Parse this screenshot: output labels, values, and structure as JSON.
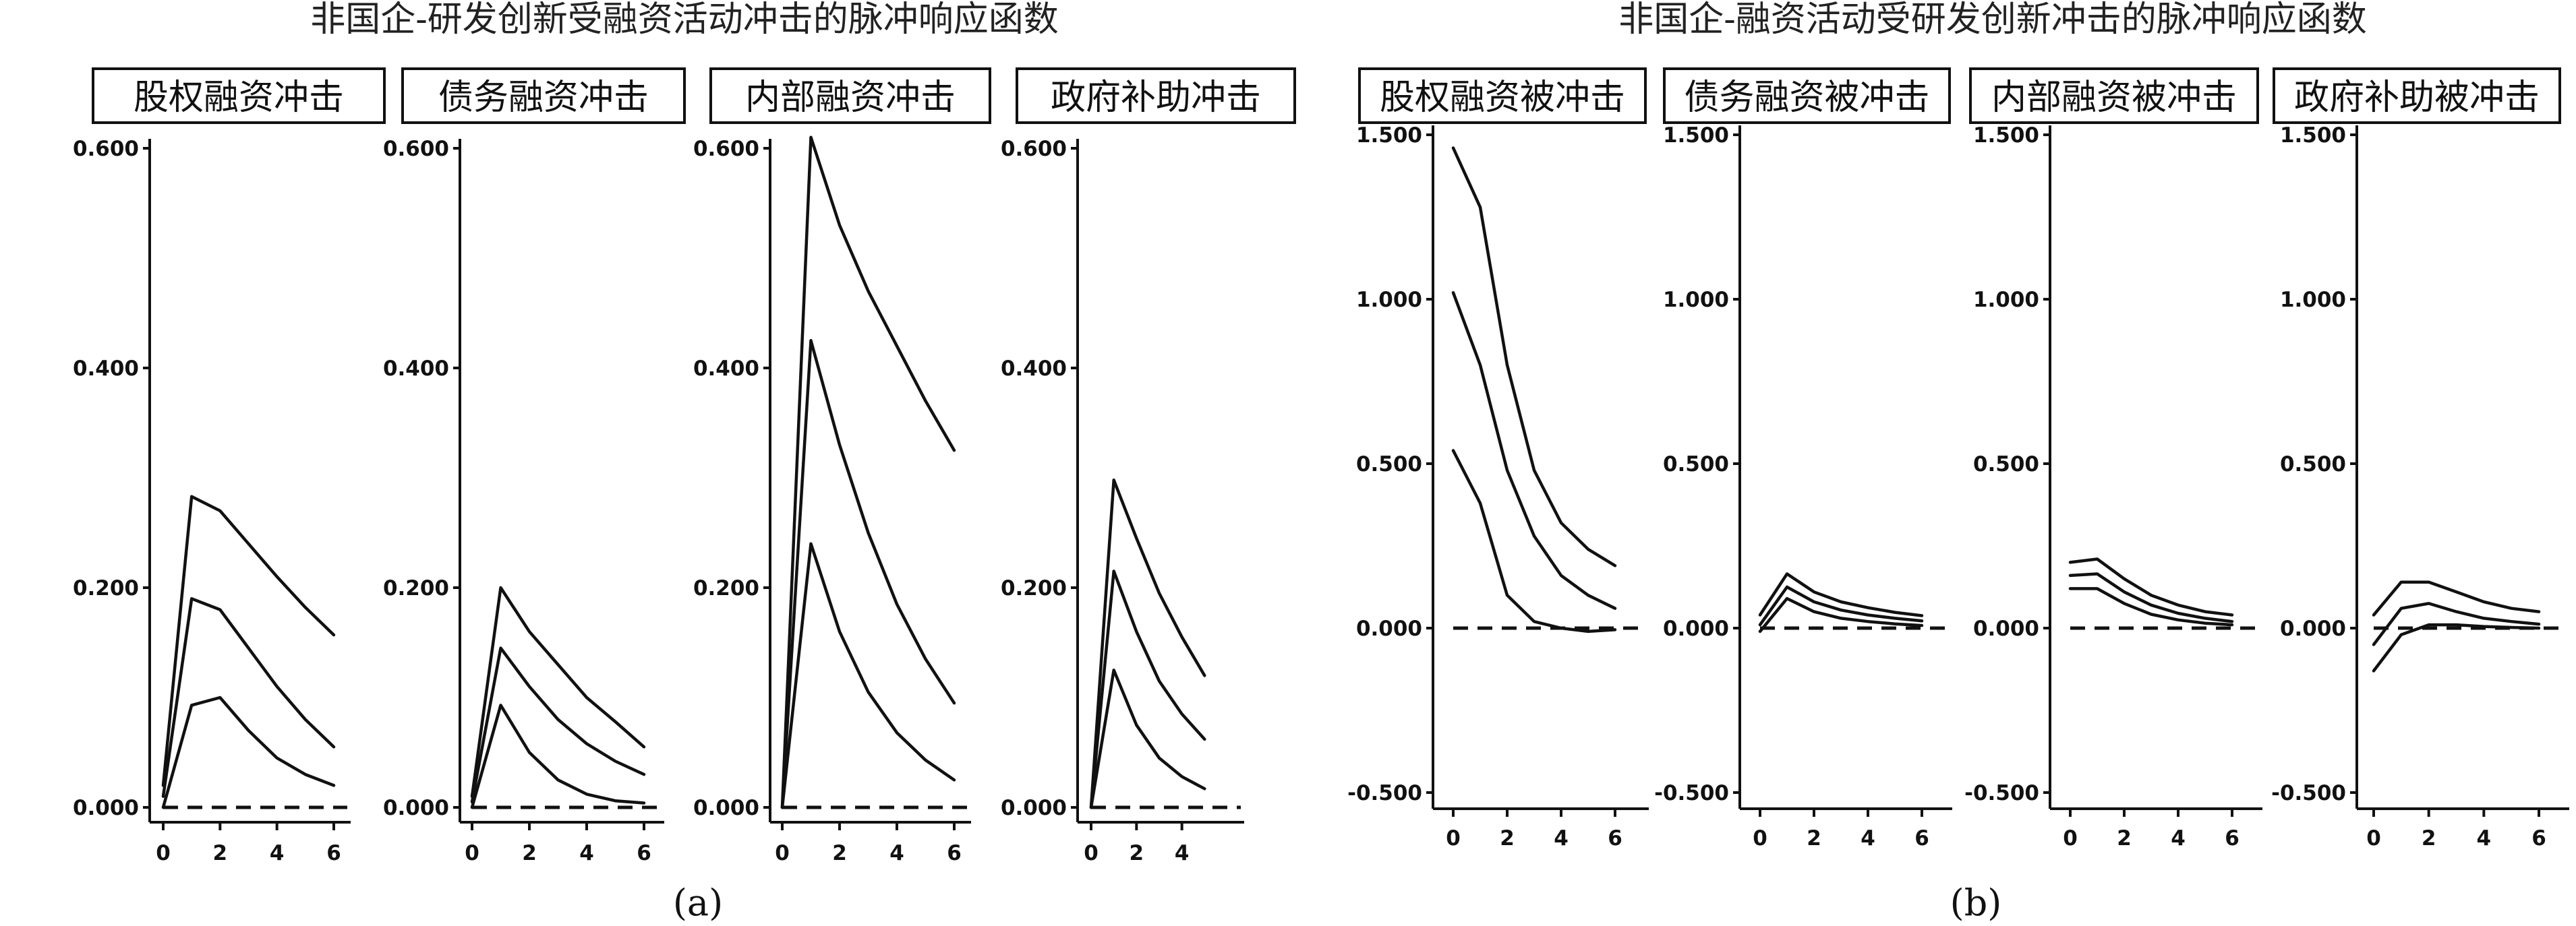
{
  "page": {
    "left_title": "非国企-研发创新受融资活动冲击的脉冲响应函数",
    "right_title": "非国企-融资活动受研发创新冲击的脉冲响应函数",
    "label_a": "(a)",
    "label_b": "(b)"
  },
  "chart_data": [
    {
      "type": "line",
      "group": "a",
      "title": "股权融资冲击",
      "xlim": [
        0,
        6
      ],
      "ylim": [
        0,
        0.6
      ],
      "xticks": [
        "0",
        "2",
        "4",
        "6"
      ],
      "yticks": [
        "0.000",
        "0.200",
        "0.400",
        "0.600"
      ],
      "zero_line": true,
      "series": [
        {
          "x": [
            0,
            1,
            2,
            3,
            4,
            5,
            6
          ],
          "values": [
            0.02,
            0.283,
            0.27,
            0.24,
            0.21,
            0.182,
            0.157
          ]
        },
        {
          "x": [
            0,
            1,
            2,
            3,
            4,
            5,
            6
          ],
          "values": [
            0.01,
            0.19,
            0.18,
            0.145,
            0.11,
            0.08,
            0.055
          ]
        },
        {
          "x": [
            0,
            1,
            2,
            3,
            4,
            5,
            6
          ],
          "values": [
            0.0,
            0.093,
            0.1,
            0.07,
            0.045,
            0.03,
            0.02
          ]
        }
      ]
    },
    {
      "type": "line",
      "group": "a",
      "title": "债务融资冲击",
      "xlim": [
        0,
        6
      ],
      "ylim": [
        0,
        0.6
      ],
      "xticks": [
        "0",
        "2",
        "4",
        "6"
      ],
      "yticks": [
        "0.000",
        "0.200",
        "0.400",
        "0.600"
      ],
      "zero_line": true,
      "series": [
        {
          "x": [
            0,
            1,
            2,
            3,
            4,
            5,
            6
          ],
          "values": [
            0.01,
            0.2,
            0.16,
            0.13,
            0.1,
            0.078,
            0.055
          ]
        },
        {
          "x": [
            0,
            1,
            2,
            3,
            4,
            5,
            6
          ],
          "values": [
            0.005,
            0.145,
            0.11,
            0.08,
            0.058,
            0.042,
            0.03
          ]
        },
        {
          "x": [
            0,
            1,
            2,
            3,
            4,
            5,
            6
          ],
          "values": [
            0.0,
            0.093,
            0.05,
            0.025,
            0.012,
            0.006,
            0.004
          ]
        }
      ]
    },
    {
      "type": "line",
      "group": "a",
      "title": "内部融资冲击",
      "xlim": [
        0,
        6
      ],
      "ylim": [
        0,
        0.6
      ],
      "xticks": [
        "0",
        "2",
        "4",
        "6"
      ],
      "yticks": [
        "0.000",
        "0.200",
        "0.400",
        "0.600"
      ],
      "zero_line": true,
      "series": [
        {
          "x": [
            0,
            1,
            2,
            3,
            4,
            5,
            6
          ],
          "values": [
            0.0,
            0.61,
            0.53,
            0.47,
            0.42,
            0.37,
            0.325
          ]
        },
        {
          "x": [
            0,
            1,
            2,
            3,
            4,
            5,
            6
          ],
          "values": [
            0.0,
            0.425,
            0.33,
            0.25,
            0.185,
            0.135,
            0.095
          ]
        },
        {
          "x": [
            0,
            1,
            2,
            3,
            4,
            5,
            6
          ],
          "values": [
            0.0,
            0.24,
            0.16,
            0.105,
            0.068,
            0.043,
            0.025
          ]
        }
      ]
    },
    {
      "type": "line",
      "group": "a",
      "title": "政府补助冲击",
      "xlim": [
        0,
        5
      ],
      "ylim": [
        0,
        0.6
      ],
      "xticks": [
        "0",
        "2",
        "4"
      ],
      "yticks": [
        "0.000",
        "0.200",
        "0.400",
        "0.600"
      ],
      "zero_line": true,
      "series": [
        {
          "x": [
            0,
            1,
            2,
            3,
            4,
            5
          ],
          "values": [
            0.0,
            0.298,
            0.245,
            0.195,
            0.155,
            0.12
          ]
        },
        {
          "x": [
            0,
            1,
            2,
            3,
            4,
            5
          ],
          "values": [
            0.0,
            0.215,
            0.16,
            0.115,
            0.085,
            0.062
          ]
        },
        {
          "x": [
            0,
            1,
            2,
            3,
            4,
            5
          ],
          "values": [
            0.0,
            0.125,
            0.075,
            0.045,
            0.028,
            0.017
          ]
        }
      ]
    },
    {
      "type": "line",
      "group": "b",
      "title": "股权融资被冲击",
      "xlim": [
        0,
        6
      ],
      "ylim": [
        -0.5,
        1.5
      ],
      "xticks": [
        "0",
        "2",
        "4",
        "6"
      ],
      "yticks": [
        "-0.500",
        "0.000",
        "0.500",
        "1.000",
        "1.500"
      ],
      "zero_line": true,
      "series": [
        {
          "x": [
            0,
            1,
            2,
            3,
            4,
            5,
            6
          ],
          "values": [
            1.46,
            1.28,
            0.8,
            0.48,
            0.32,
            0.24,
            0.19
          ]
        },
        {
          "x": [
            0,
            1,
            2,
            3,
            4,
            5,
            6
          ],
          "values": [
            1.02,
            0.8,
            0.48,
            0.28,
            0.16,
            0.1,
            0.06
          ]
        },
        {
          "x": [
            0,
            1,
            2,
            3,
            4,
            5,
            6
          ],
          "values": [
            0.54,
            0.38,
            0.1,
            0.02,
            0.0,
            -0.01,
            -0.005
          ]
        }
      ]
    },
    {
      "type": "line",
      "group": "b",
      "title": "债务融资被冲击",
      "xlim": [
        0,
        6
      ],
      "ylim": [
        -0.5,
        1.5
      ],
      "xticks": [
        "0",
        "2",
        "4",
        "6"
      ],
      "yticks": [
        "-0.500",
        "0.000",
        "0.500",
        "1.000",
        "1.500"
      ],
      "zero_line": true,
      "series": [
        {
          "x": [
            0,
            1,
            2,
            3,
            4,
            5,
            6
          ],
          "values": [
            0.04,
            0.165,
            0.11,
            0.08,
            0.062,
            0.048,
            0.038
          ]
        },
        {
          "x": [
            0,
            1,
            2,
            3,
            4,
            5,
            6
          ],
          "values": [
            0.01,
            0.125,
            0.08,
            0.055,
            0.04,
            0.03,
            0.022
          ]
        },
        {
          "x": [
            0,
            1,
            2,
            3,
            4,
            5,
            6
          ],
          "values": [
            -0.01,
            0.09,
            0.05,
            0.03,
            0.02,
            0.013,
            0.008
          ]
        }
      ]
    },
    {
      "type": "line",
      "group": "b",
      "title": "内部融资被冲击",
      "xlim": [
        0,
        6
      ],
      "ylim": [
        -0.5,
        1.5
      ],
      "xticks": [
        "0",
        "2",
        "4",
        "6"
      ],
      "yticks": [
        "-0.500",
        "0.000",
        "0.500",
        "1.000",
        "1.500"
      ],
      "zero_line": true,
      "series": [
        {
          "x": [
            0,
            1,
            2,
            3,
            4,
            5,
            6
          ],
          "values": [
            0.2,
            0.21,
            0.15,
            0.1,
            0.07,
            0.05,
            0.04
          ]
        },
        {
          "x": [
            0,
            1,
            2,
            3,
            4,
            5,
            6
          ],
          "values": [
            0.16,
            0.165,
            0.11,
            0.07,
            0.045,
            0.03,
            0.02
          ]
        },
        {
          "x": [
            0,
            1,
            2,
            3,
            4,
            5,
            6
          ],
          "values": [
            0.12,
            0.12,
            0.075,
            0.042,
            0.025,
            0.015,
            0.01
          ]
        }
      ]
    },
    {
      "type": "line",
      "group": "b",
      "title": "政府补助被冲击",
      "xlim": [
        0,
        6
      ],
      "ylim": [
        -0.5,
        1.5
      ],
      "xticks": [
        "0",
        "2",
        "4",
        "6"
      ],
      "yticks": [
        "-0.500",
        "0.000",
        "0.500",
        "1.000",
        "1.500"
      ],
      "zero_line": true,
      "series": [
        {
          "x": [
            0,
            1,
            2,
            3,
            4,
            5,
            6
          ],
          "values": [
            0.04,
            0.14,
            0.14,
            0.11,
            0.08,
            0.06,
            0.05
          ]
        },
        {
          "x": [
            0,
            1,
            2,
            3,
            4,
            5,
            6
          ],
          "values": [
            -0.05,
            0.06,
            0.075,
            0.05,
            0.03,
            0.02,
            0.012
          ]
        },
        {
          "x": [
            0,
            1,
            2,
            3,
            4,
            5,
            6
          ],
          "values": [
            -0.13,
            -0.02,
            0.01,
            0.01,
            0.005,
            0.002,
            0.0
          ]
        }
      ]
    }
  ]
}
